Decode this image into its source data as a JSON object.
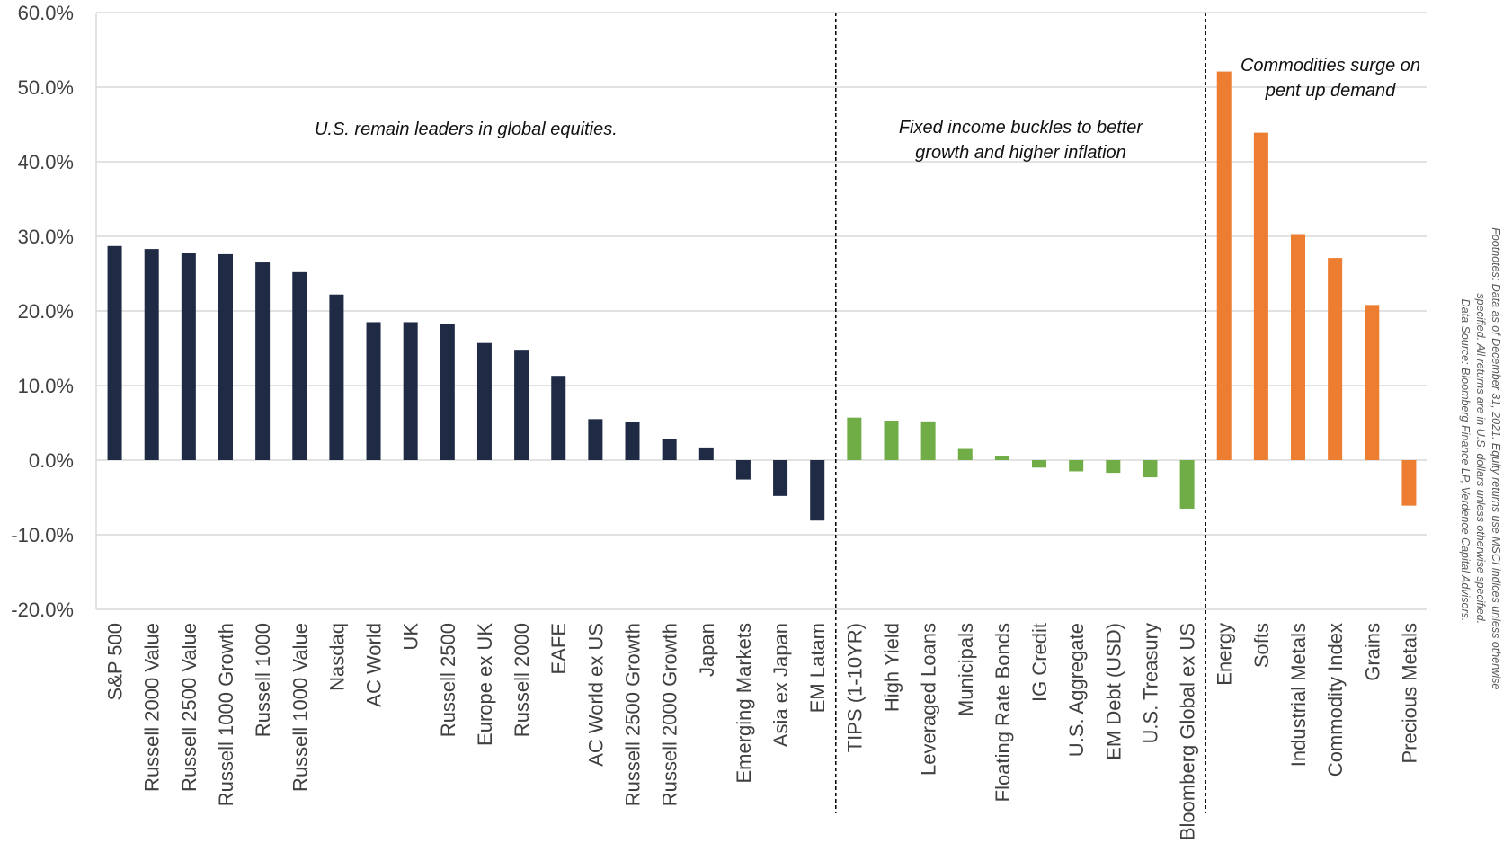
{
  "chart_data": {
    "type": "bar",
    "title": "",
    "xlabel": "",
    "ylabel": "",
    "ylim": [
      -20,
      60
    ],
    "y_ticks": [
      -20,
      -10,
      0,
      10,
      20,
      30,
      40,
      50,
      60
    ],
    "y_tick_format": "percent_1dp",
    "grid": true,
    "legend": "none",
    "categories": [
      "S&P 500",
      "Russell 2000 Value",
      "Russell 2500 Value",
      "Russell 1000 Growth",
      "Russell 1000",
      "Russell 1000 Value",
      "Nasdaq",
      "AC World",
      "UK",
      "Russell 2500",
      "Europe ex UK",
      "Russell 2000",
      "EAFE",
      "AC World ex US",
      "Russell 2500 Growth",
      "Russell 2000 Growth",
      "Japan",
      "Emerging Markets",
      "Asia ex Japan",
      "EM Latam",
      "TIPS (1-10YR)",
      "High Yield",
      "Leveraged Loans",
      "Municipals",
      "Floating Rate Bonds",
      "IG Credit",
      "U.S. Aggregate",
      "EM Debt (USD)",
      "U.S. Treasury",
      "Bloomberg Global ex US",
      "Energy",
      "Softs",
      "Industrial Metals",
      "Commodity Index",
      "Grains",
      "Precious Metals"
    ],
    "values": [
      28.7,
      28.3,
      27.8,
      27.6,
      26.5,
      25.2,
      22.2,
      18.5,
      18.5,
      18.2,
      15.7,
      14.8,
      11.3,
      5.5,
      5.1,
      2.8,
      1.7,
      -2.6,
      -4.8,
      -8.1,
      5.7,
      5.3,
      5.2,
      1.5,
      0.6,
      -1.0,
      -1.5,
      -1.7,
      -2.3,
      -6.5,
      52.1,
      43.9,
      30.3,
      27.1,
      20.8,
      -6.1
    ],
    "groups": [
      {
        "start": 0,
        "end": 19,
        "color": "#1f2a44",
        "annotation": [
          "U.S. remain leaders in global equities."
        ]
      },
      {
        "start": 20,
        "end": 29,
        "color": "#70ad47",
        "annotation": [
          "Fixed income buckles to better",
          "growth and higher inflation"
        ]
      },
      {
        "start": 30,
        "end": 35,
        "color": "#ed7d31",
        "annotation": [
          "Commodities surge on",
          "pent up demand"
        ]
      }
    ],
    "gridline_color": "#d9d9d9",
    "divider_color": "#000000"
  },
  "footnotes": [
    "Footnotes: Data as of December 31, 2021. Equity returns use MSCI indices unless otherwise",
    "specified. All returns are in U.S. dollars unless otherwise specified.",
    "Data Source: Bloomberg Finance LP, Verdence Capital Advisors."
  ]
}
